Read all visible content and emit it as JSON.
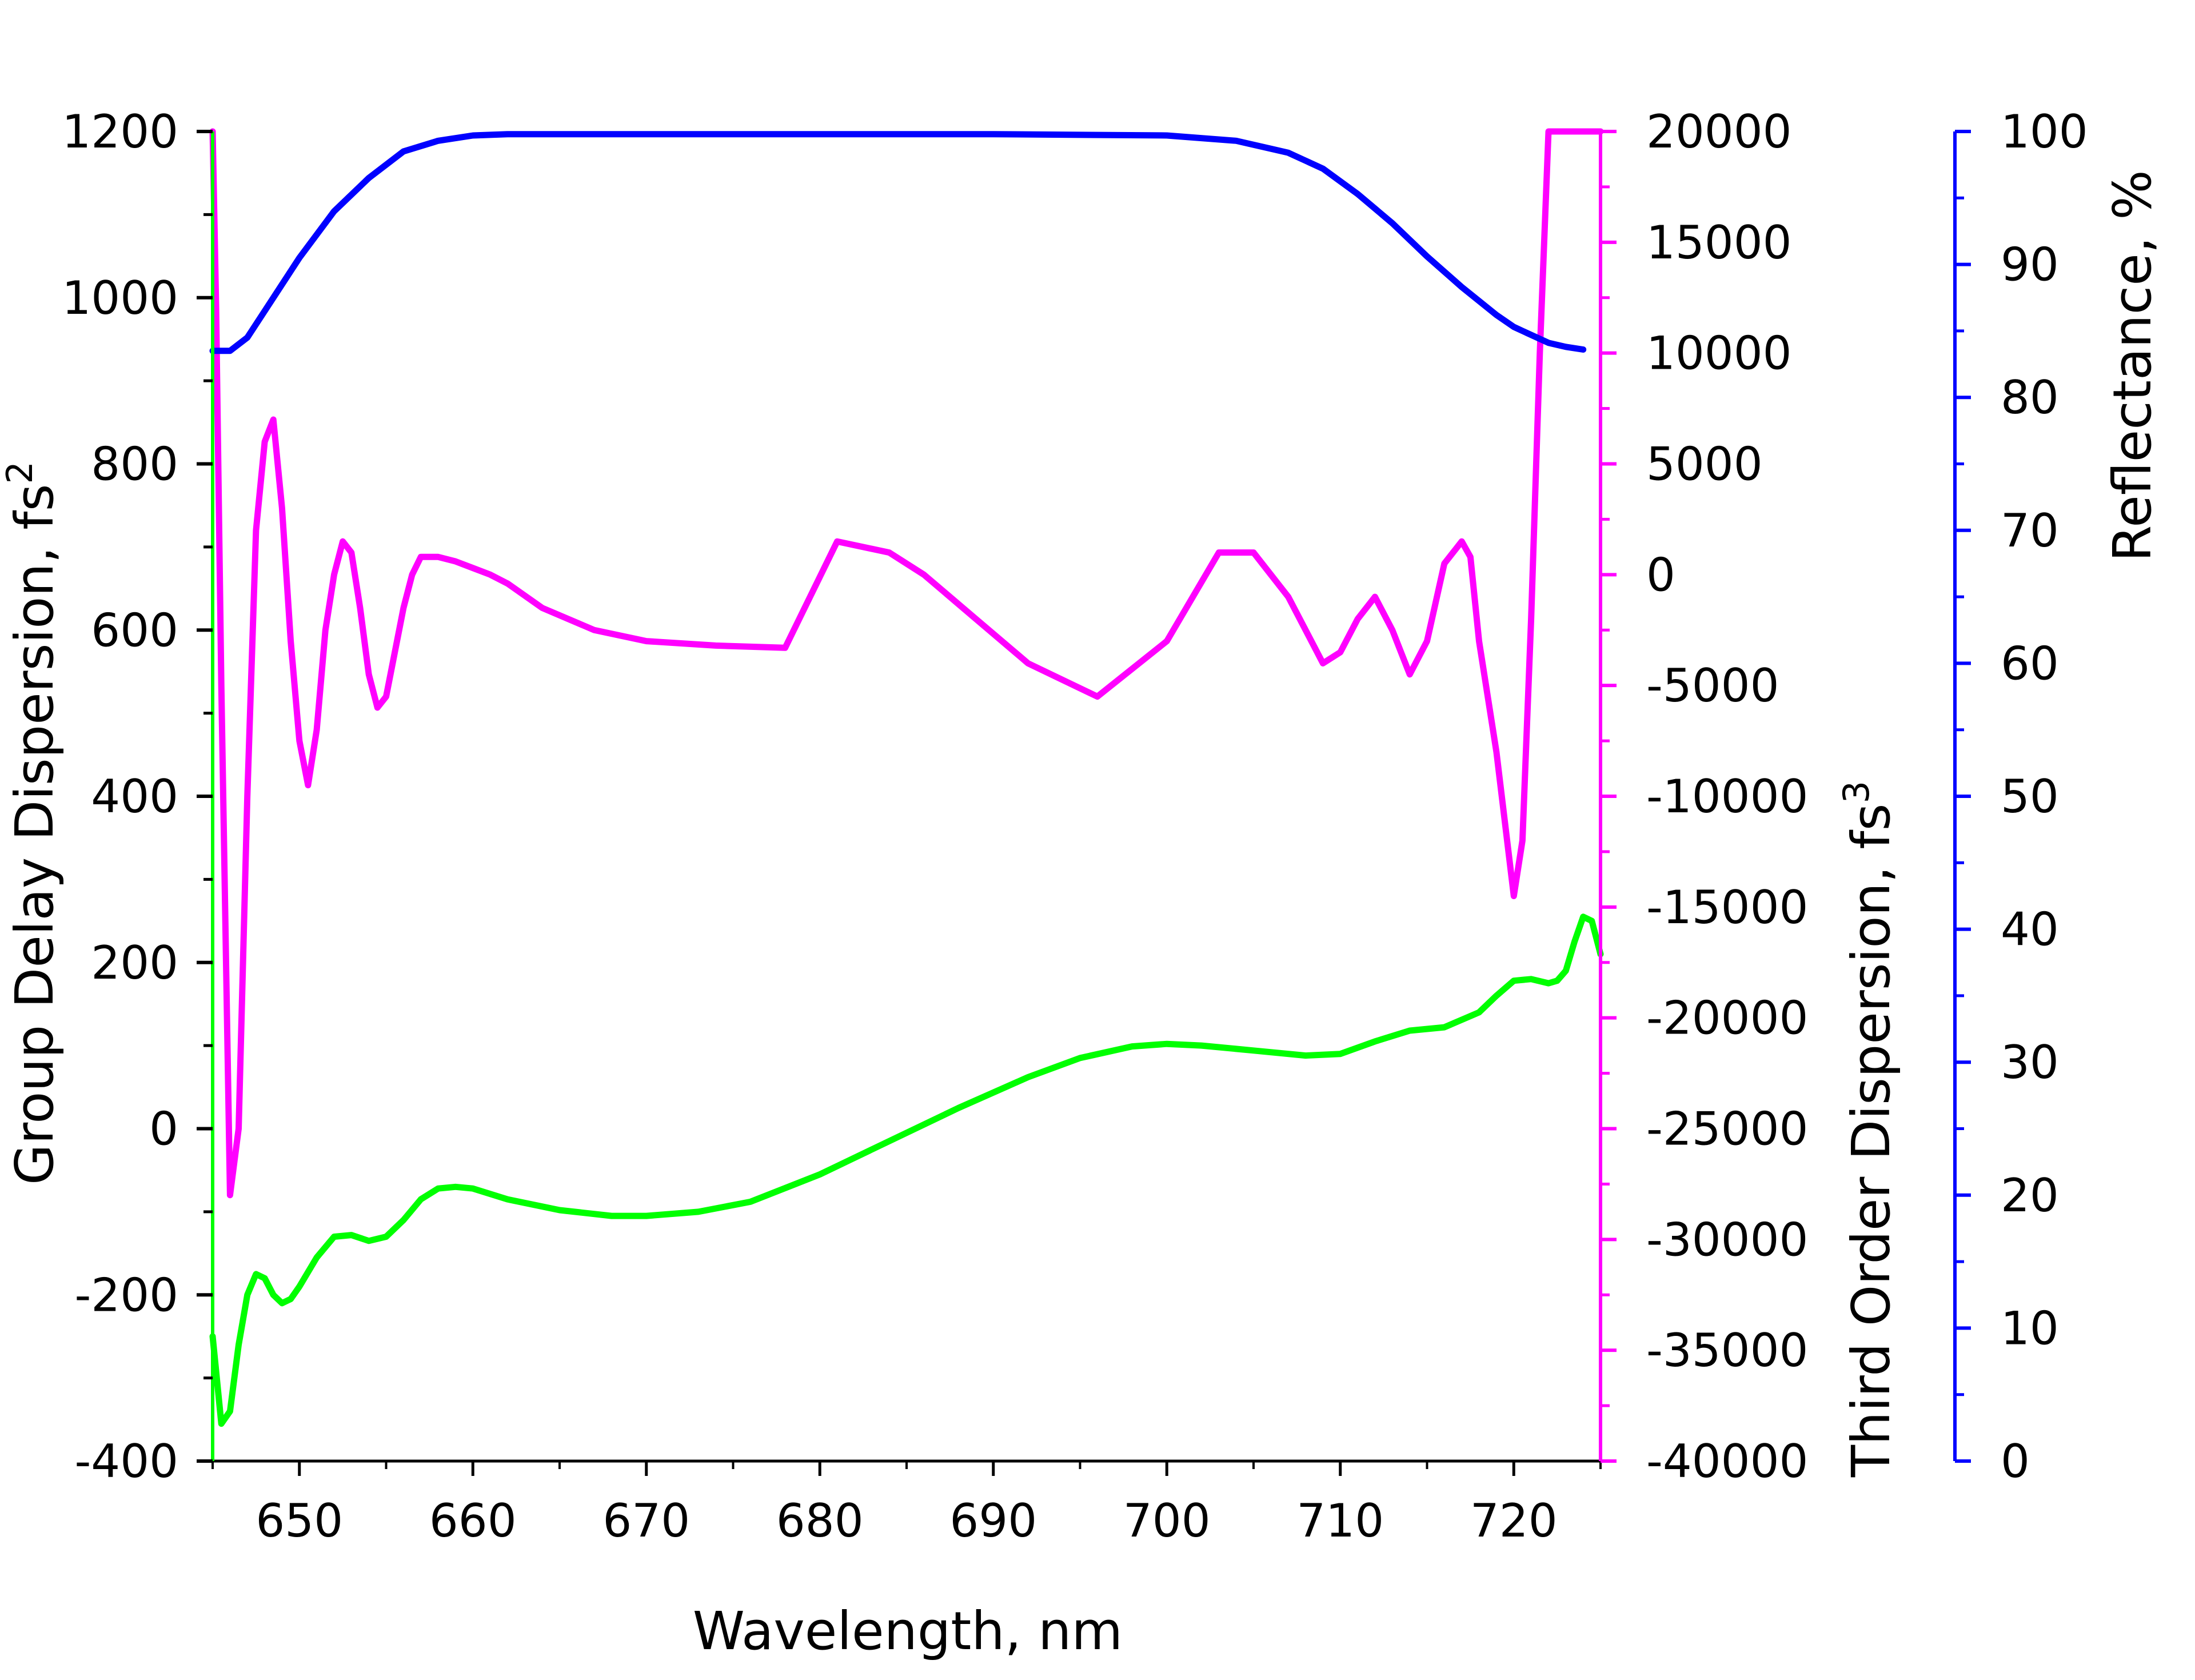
{
  "chart_data": {
    "type": "line",
    "title": "",
    "xlabel": "Wavelength, nm",
    "xlim": [
      645,
      725
    ],
    "x_ticks": [
      650,
      660,
      670,
      680,
      690,
      700,
      710,
      720
    ],
    "x_tick_labels": [
      "650",
      "660",
      "670",
      "680",
      "690",
      "700",
      "710",
      "720"
    ],
    "y_axes": [
      {
        "id": "gdd",
        "label_main": "Group Delay Dispersion, fs",
        "label_sup": "2",
        "side": "left",
        "color": "#00ff00",
        "ylim": [
          -400,
          1200
        ],
        "ticks": [
          -400,
          -200,
          0,
          200,
          400,
          600,
          800,
          1000,
          1200
        ],
        "tick_labels": [
          "-400",
          "-200",
          "0",
          "200",
          "400",
          "600",
          "800",
          "1000",
          "1200"
        ]
      },
      {
        "id": "tod",
        "label_main": "Third Order Dispersion, fs",
        "label_sup": "3",
        "side": "right",
        "color": "#ff00ff",
        "ylim": [
          -40000,
          20000
        ],
        "ticks": [
          -40000,
          -35000,
          -30000,
          -25000,
          -20000,
          -15000,
          -10000,
          -5000,
          0,
          5000,
          10000,
          15000,
          20000
        ],
        "tick_labels": [
          "-40000",
          "-35000",
          "-30000",
          "-25000",
          "-20000",
          "-15000",
          "-10000",
          "-5000",
          "0",
          "5000",
          "10000",
          "15000",
          "20000"
        ]
      },
      {
        "id": "refl",
        "label_main": "Reflectance, %",
        "label_sup": "",
        "side": "right-offset",
        "color": "#0000ff",
        "ylim": [
          0,
          100
        ],
        "ticks": [
          0,
          10,
          20,
          30,
          40,
          50,
          60,
          70,
          80,
          90,
          100
        ],
        "tick_labels": [
          "0",
          "10",
          "20",
          "30",
          "40",
          "50",
          "60",
          "70",
          "80",
          "90",
          "100"
        ]
      }
    ],
    "series": [
      {
        "axis": "gdd",
        "color": "#00ff00",
        "x": [
          645.0,
          645.5,
          646.0,
          646.5,
          647.0,
          647.5,
          648.0,
          648.5,
          649.0,
          649.5,
          650.0,
          651.0,
          652.0,
          653.0,
          654.0,
          655.0,
          656.0,
          657.0,
          658.0,
          659.0,
          660.0,
          662.0,
          665.0,
          668.0,
          670.0,
          673.0,
          676.0,
          680.0,
          684.0,
          688.0,
          692.0,
          695.0,
          698.0,
          700.0,
          702.0,
          705.0,
          708.0,
          710.0,
          712.0,
          714.0,
          716.0,
          718.0,
          719.0,
          720.0,
          721.0,
          722.0,
          722.5,
          723.0,
          723.5,
          724.0,
          724.5,
          725.0
        ],
        "y": [
          -250,
          -355,
          -340,
          -260,
          -200,
          -175,
          -180,
          -200,
          -210,
          -205,
          -190,
          -155,
          -130,
          -128,
          -135,
          -130,
          -110,
          -85,
          -72,
          -70,
          -72,
          -85,
          -98,
          -105,
          -105,
          -100,
          -88,
          -55,
          -15,
          25,
          62,
          85,
          99,
          102,
          100,
          94,
          88,
          90,
          105,
          118,
          122,
          140,
          160,
          178,
          180,
          175,
          178,
          190,
          225,
          255,
          250,
          210
        ]
      },
      {
        "axis": "tod",
        "color": "#ff00ff",
        "x": [
          645.0,
          645.2,
          645.5,
          646.0,
          646.5,
          647.0,
          647.5,
          648.0,
          648.5,
          649.0,
          649.5,
          650.0,
          650.5,
          651.0,
          651.5,
          652.0,
          652.5,
          653.0,
          653.5,
          654.0,
          654.5,
          655.0,
          655.5,
          656.0,
          656.5,
          657.0,
          658.0,
          659.0,
          660.0,
          661.0,
          662.0,
          664.0,
          667.0,
          670.0,
          674.0,
          678.0,
          681.0,
          684.0,
          686.0,
          689.0,
          692.0,
          696.0,
          700.0,
          703.0,
          705.0,
          706.0,
          707.0,
          708.0,
          709.0,
          710.0,
          711.0,
          712.0,
          713.0,
          714.0,
          715.0,
          716.0,
          717.0,
          717.5,
          718.0,
          719.0,
          720.0,
          720.5,
          721.0,
          721.5,
          722.0,
          722.5,
          723.0,
          723.3,
          723.6,
          724.0,
          724.3,
          724.6,
          725.0
        ],
        "y": [
          20000,
          12000,
          -5000,
          -28000,
          -25000,
          -10000,
          2000,
          6000,
          7000,
          3000,
          -3000,
          -7500,
          -9500,
          -7000,
          -2500,
          0,
          1500,
          1000,
          -1500,
          -4500,
          -6000,
          -5500,
          -3500,
          -1500,
          0,
          800,
          800,
          600,
          300,
          0,
          -400,
          -1500,
          -2500,
          -3000,
          -3200,
          -3300,
          1500,
          1000,
          0,
          -2000,
          -4000,
          -5500,
          -3000,
          1000,
          1000,
          0,
          -1000,
          -2500,
          -4000,
          -3500,
          -2000,
          -1000,
          -2500,
          -4500,
          -3000,
          500,
          1500,
          800,
          -3000,
          -8000,
          -14500,
          -12000,
          -2000,
          10000,
          20000,
          20000,
          20000,
          20000,
          20000,
          20000,
          20000,
          20000,
          20000
        ]
      },
      {
        "axis": "refl",
        "color": "#0000ff",
        "x": [
          645.0,
          646.0,
          647.0,
          648.0,
          650.0,
          652.0,
          654.0,
          656.0,
          658.0,
          660.0,
          662.0,
          665.0,
          670.0,
          680.0,
          690.0,
          700.0,
          704.0,
          707.0,
          709.0,
          711.0,
          713.0,
          715.0,
          717.0,
          719.0,
          720.0,
          721.0,
          722.0,
          723.0,
          724.0
        ],
        "y": [
          83.5,
          83.5,
          84.5,
          86.5,
          90.5,
          94.0,
          96.5,
          98.5,
          99.3,
          99.7,
          99.8,
          99.8,
          99.8,
          99.8,
          99.8,
          99.7,
          99.3,
          98.4,
          97.2,
          95.3,
          93.1,
          90.6,
          88.3,
          86.2,
          85.3,
          84.7,
          84.1,
          83.8,
          83.6
        ]
      }
    ],
    "grid": false,
    "legend": "none"
  }
}
